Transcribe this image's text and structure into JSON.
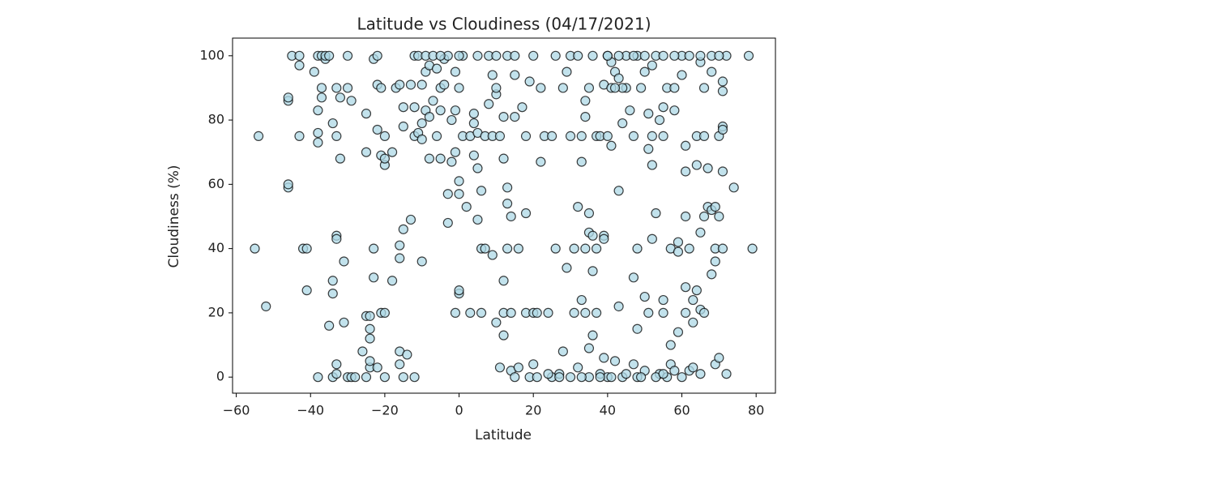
{
  "chart_data": {
    "type": "scatter",
    "title": "Latitude vs Cloudiness (04/17/2021)",
    "x_label": "Latitude",
    "y_label": "Cloudiness (%)",
    "color": "#add8e6",
    "edgecolor": "#000000",
    "grid": false,
    "xlim": [
      -61,
      85.2
    ],
    "ylim": [
      -5,
      105.5
    ],
    "xticks": [
      {
        "value": -60,
        "label": "−60"
      },
      {
        "value": -40,
        "label": "−40"
      },
      {
        "value": -20,
        "label": "−20"
      },
      0,
      20,
      40,
      60,
      80
    ],
    "yticks": [
      0,
      20,
      40,
      60,
      80,
      100
    ],
    "x": [
      -55,
      -54,
      -52,
      -46,
      -46,
      -46,
      -46,
      -45,
      -43,
      -43,
      -43,
      -42,
      -41,
      -41,
      -39,
      -38,
      -38,
      -38,
      -38,
      -38,
      -37,
      -37,
      -37,
      -36,
      -36,
      -35,
      -35,
      -34,
      -34,
      -34,
      -34,
      -33,
      -33,
      -33,
      -33,
      -33,
      -33,
      -32,
      -32,
      -31,
      -31,
      -30,
      -30,
      -30,
      -29,
      -29,
      -28,
      -25,
      -25,
      -25,
      -24,
      -24,
      -24,
      -24,
      -24,
      -26,
      -25,
      -23,
      -23,
      -23,
      -22,
      -22,
      -22,
      -22,
      -21,
      -21,
      -21,
      -20,
      -20,
      -20,
      -20,
      -20,
      -18,
      -18,
      -17,
      -16,
      -16,
      -16,
      -16,
      -16,
      -15,
      -15,
      -15,
      -15,
      -14,
      -13,
      -13,
      -12,
      -12,
      -12,
      -12,
      -11,
      -11,
      -10,
      -10,
      -10,
      -10,
      -9,
      -9,
      -9,
      -8,
      -8,
      -8,
      -7,
      -7,
      -6,
      -6,
      -5,
      -5,
      -5,
      -4,
      -4,
      -3,
      -3,
      -3,
      -2,
      -2,
      -1,
      -1,
      -1,
      -1,
      0,
      0,
      0,
      0,
      0,
      1,
      1,
      2,
      3,
      3,
      4,
      4,
      4,
      5,
      5,
      5,
      6,
      6,
      6,
      7,
      7,
      8,
      8,
      9,
      9,
      9,
      10,
      10,
      10,
      11,
      11,
      12,
      12,
      12,
      12,
      12,
      13,
      13,
      13,
      13,
      14,
      14,
      14,
      15,
      15,
      15,
      16,
      16,
      17,
      18,
      18,
      18,
      19,
      19,
      20,
      20,
      20,
      21,
      21,
      22,
      22,
      23,
      24,
      25,
      25,
      26,
      26,
      27,
      28,
      28,
      29,
      29,
      30,
      30,
      31,
      31,
      32,
      32,
      32,
      33,
      33,
      33,
      34,
      34,
      34,
      34,
      35,
      35,
      35,
      35,
      36,
      36,
      36,
      36,
      37,
      37,
      37,
      38,
      38,
      39,
      39,
      39,
      39,
      40,
      40,
      40,
      41,
      41,
      41,
      42,
      42,
      43,
      43,
      43,
      44,
      44,
      45,
      45,
      46,
      47,
      47,
      48,
      48,
      48,
      49,
      50,
      50,
      51,
      51,
      51,
      52,
      52,
      52,
      53,
      53,
      54,
      54,
      55,
      55,
      55,
      55,
      56,
      57,
      57,
      57,
      58,
      58,
      59,
      59,
      59,
      60,
      60,
      61,
      61,
      61,
      61,
      61,
      62,
      62,
      63,
      63,
      64,
      64,
      64,
      65,
      65,
      65,
      66,
      66,
      66,
      66,
      67,
      67,
      68,
      68,
      68,
      69,
      69,
      69,
      69,
      70,
      70,
      70,
      71,
      71,
      71,
      71,
      71,
      71,
      72,
      72,
      74,
      78,
      79,
      30,
      35,
      38,
      41,
      45,
      48,
      50,
      53,
      56,
      60,
      63,
      65,
      58,
      24,
      27,
      33,
      40,
      43,
      47,
      50,
      55,
      58,
      62,
      65,
      68,
      70,
      10,
      5,
      15,
      0,
      -5,
      47,
      52,
      44,
      42,
      49,
      55
    ],
    "values": [
      40,
      75,
      22,
      86,
      87,
      59,
      60,
      100,
      97,
      100,
      75,
      40,
      40,
      27,
      95,
      100,
      0,
      73,
      76,
      83,
      87,
      90,
      100,
      99,
      100,
      100,
      16,
      0,
      26,
      30,
      79,
      75,
      44,
      43,
      4,
      1,
      90,
      87,
      68,
      36,
      17,
      0,
      100,
      90,
      86,
      0,
      0,
      70,
      82,
      19,
      19,
      15,
      12,
      3,
      5,
      8,
      0,
      40,
      31,
      99,
      100,
      91,
      77,
      3,
      90,
      69,
      20,
      20,
      0,
      75,
      66,
      68,
      30,
      70,
      90,
      91,
      41,
      37,
      8,
      4,
      84,
      78,
      46,
      0,
      7,
      91,
      49,
      100,
      84,
      75,
      0,
      76,
      100,
      74,
      36,
      79,
      91,
      100,
      95,
      83,
      68,
      97,
      81,
      100,
      86,
      75,
      96,
      90,
      83,
      68,
      99,
      91,
      57,
      48,
      100,
      80,
      67,
      95,
      83,
      70,
      20,
      57,
      26,
      27,
      61,
      90,
      100,
      75,
      53,
      75,
      20,
      69,
      79,
      82,
      76,
      65,
      49,
      58,
      40,
      20,
      40,
      75,
      85,
      100,
      75,
      94,
      38,
      17,
      88,
      90,
      3,
      75,
      81,
      68,
      30,
      20,
      13,
      100,
      40,
      54,
      59,
      50,
      20,
      2,
      94,
      81,
      0,
      40,
      3,
      84,
      51,
      20,
      75,
      92,
      0,
      100,
      20,
      4,
      20,
      0,
      90,
      67,
      75,
      20,
      75,
      0,
      100,
      40,
      1,
      90,
      8,
      34,
      95,
      75,
      100,
      40,
      20,
      100,
      53,
      3,
      67,
      24,
      75,
      81,
      86,
      40,
      20,
      45,
      51,
      9,
      90,
      100,
      33,
      13,
      44,
      40,
      20,
      75,
      75,
      1,
      91,
      44,
      43,
      6,
      100,
      75,
      0,
      98,
      90,
      72,
      5,
      95,
      58,
      22,
      93,
      79,
      0,
      100,
      90,
      83,
      31,
      4,
      100,
      15,
      40,
      90,
      25,
      95,
      20,
      71,
      82,
      97,
      66,
      43,
      51,
      100,
      80,
      1,
      24,
      20,
      84,
      75,
      90,
      10,
      4,
      40,
      83,
      90,
      14,
      42,
      39,
      100,
      94,
      72,
      64,
      50,
      28,
      20,
      40,
      2,
      17,
      24,
      75,
      66,
      27,
      21,
      98,
      45,
      20,
      90,
      50,
      75,
      53,
      65,
      52,
      32,
      95,
      40,
      36,
      4,
      53,
      6,
      50,
      75,
      64,
      89,
      92,
      78,
      77,
      40,
      1,
      100,
      59,
      100,
      40,
      0,
      0,
      0,
      0,
      1,
      0,
      2,
      0,
      0,
      0,
      3,
      1,
      2,
      1,
      0,
      0,
      100,
      100,
      100,
      100,
      100,
      100,
      100,
      100,
      100,
      100,
      100,
      100,
      100,
      100,
      100,
      75,
      75,
      90,
      90,
      0,
      1
    ]
  }
}
